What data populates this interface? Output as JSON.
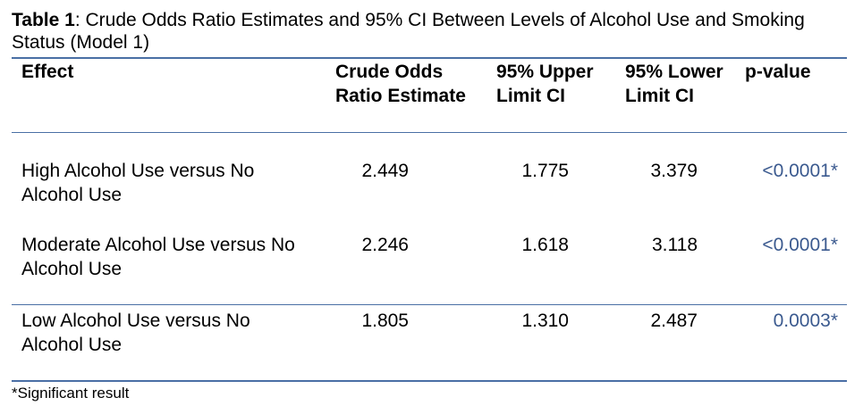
{
  "caption": {
    "label": "Table 1",
    "text": ": Crude Odds Ratio Estimates and 95% CI Between Levels of Alcohol Use and Smoking Status (Model 1)"
  },
  "table": {
    "headers": {
      "effect": "Effect",
      "estimate": "Crude Odds Ratio Estimate",
      "upper": "95% Upper Limit CI",
      "lower": "95% Lower Limit CI",
      "pvalue": "p-value"
    },
    "rows": [
      {
        "effect": "High Alcohol Use versus No Alcohol Use",
        "estimate": "2.449",
        "upper": "1.775",
        "lower": "3.379",
        "pvalue": "<0.0001*"
      },
      {
        "effect": "Moderate Alcohol Use versus No Alcohol Use",
        "estimate": "2.246",
        "upper": "1.618",
        "lower": "3.118",
        "pvalue": "<0.0001*"
      },
      {
        "effect": "Low Alcohol Use versus No Alcohol Use",
        "estimate": "1.805",
        "upper": "1.310",
        "lower": "2.487",
        "pvalue": "0.0003*"
      }
    ]
  },
  "footnote": "*Significant result",
  "colors": {
    "rule": "#4a6fa5",
    "pvalue_text": "#3b5a8f"
  }
}
